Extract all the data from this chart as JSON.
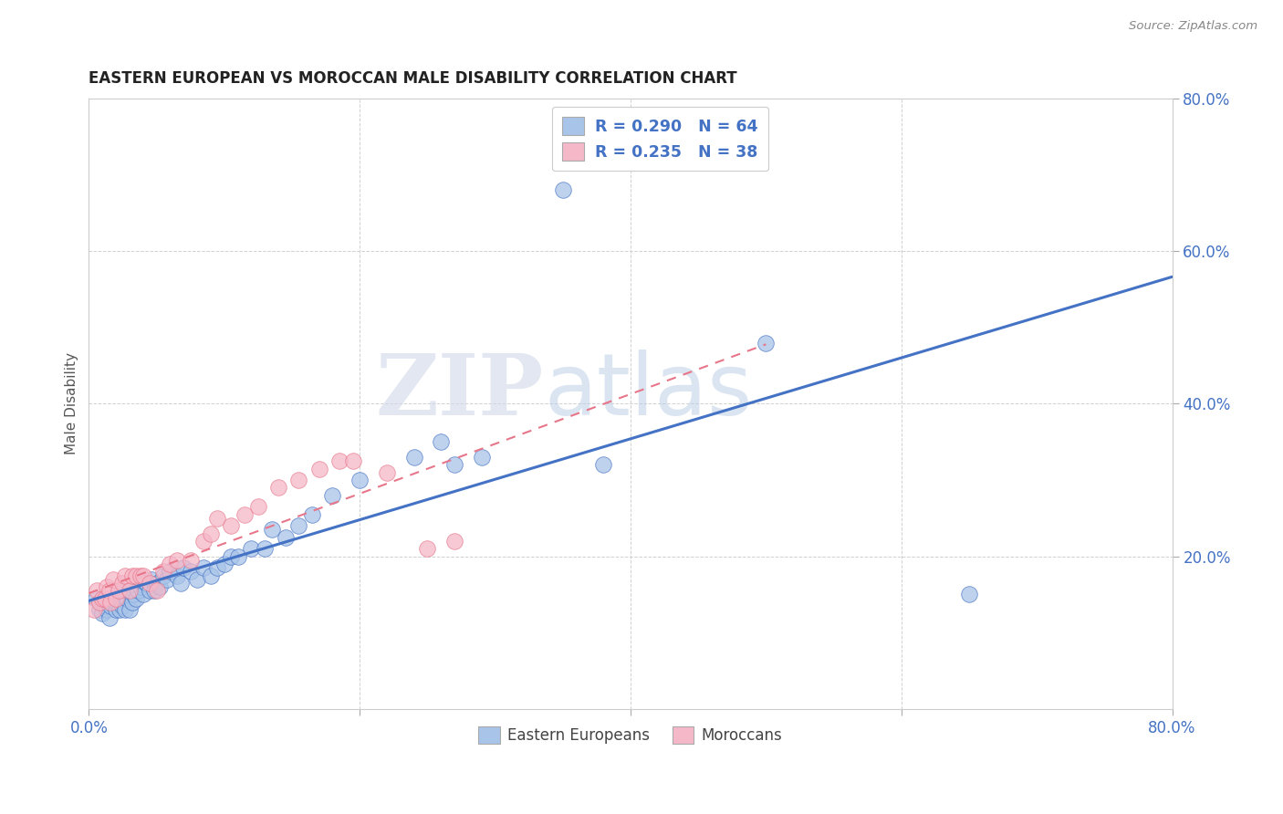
{
  "title": "EASTERN EUROPEAN VS MOROCCAN MALE DISABILITY CORRELATION CHART",
  "source_text": "Source: ZipAtlas.com",
  "ylabel": "Male Disability",
  "xlim": [
    0,
    0.8
  ],
  "ylim": [
    0,
    0.8
  ],
  "xtick_vals": [
    0.0,
    0.2,
    0.4,
    0.6,
    0.8
  ],
  "xtick_labels": [
    "0.0%",
    "",
    "",
    "",
    "80.0%"
  ],
  "ytick_vals": [
    0.2,
    0.4,
    0.6,
    0.8
  ],
  "ytick_labels": [
    "20.0%",
    "40.0%",
    "60.0%",
    "80.0%"
  ],
  "legend_label1": "R = 0.290   N = 64",
  "legend_label2": "R = 0.235   N = 38",
  "blue_color": "#a8c4e8",
  "pink_color": "#f5b8c8",
  "line_blue": "#4472c4",
  "line_pink": "#e8768a",
  "watermark_zip": "ZIP",
  "watermark_atlas": "atlas",
  "eastern_x": [
    0.005,
    0.008,
    0.01,
    0.01,
    0.012,
    0.013,
    0.014,
    0.015,
    0.016,
    0.018,
    0.02,
    0.02,
    0.022,
    0.023,
    0.024,
    0.025,
    0.025,
    0.027,
    0.028,
    0.03,
    0.03,
    0.032,
    0.033,
    0.035,
    0.036,
    0.038,
    0.04,
    0.042,
    0.043,
    0.045,
    0.046,
    0.048,
    0.05,
    0.052,
    0.055,
    0.058,
    0.06,
    0.065,
    0.068,
    0.07,
    0.075,
    0.08,
    0.085,
    0.09,
    0.095,
    0.1,
    0.105,
    0.11,
    0.12,
    0.13,
    0.135,
    0.145,
    0.155,
    0.165,
    0.18,
    0.2,
    0.24,
    0.26,
    0.27,
    0.29,
    0.35,
    0.38,
    0.5,
    0.65
  ],
  "eastern_y": [
    0.145,
    0.13,
    0.14,
    0.125,
    0.135,
    0.13,
    0.14,
    0.12,
    0.135,
    0.145,
    0.13,
    0.14,
    0.15,
    0.13,
    0.145,
    0.135,
    0.155,
    0.13,
    0.145,
    0.13,
    0.155,
    0.14,
    0.15,
    0.145,
    0.155,
    0.16,
    0.15,
    0.165,
    0.165,
    0.155,
    0.17,
    0.155,
    0.165,
    0.16,
    0.175,
    0.17,
    0.18,
    0.175,
    0.165,
    0.185,
    0.18,
    0.17,
    0.185,
    0.175,
    0.185,
    0.19,
    0.2,
    0.2,
    0.21,
    0.21,
    0.235,
    0.225,
    0.24,
    0.255,
    0.28,
    0.3,
    0.33,
    0.35,
    0.32,
    0.33,
    0.68,
    0.32,
    0.48,
    0.15
  ],
  "moroccan_x": [
    0.004,
    0.006,
    0.008,
    0.01,
    0.012,
    0.013,
    0.015,
    0.016,
    0.018,
    0.02,
    0.022,
    0.025,
    0.027,
    0.03,
    0.032,
    0.035,
    0.038,
    0.04,
    0.045,
    0.05,
    0.055,
    0.06,
    0.065,
    0.075,
    0.085,
    0.09,
    0.095,
    0.105,
    0.115,
    0.125,
    0.14,
    0.155,
    0.17,
    0.185,
    0.195,
    0.22,
    0.25,
    0.27
  ],
  "moroccan_y": [
    0.13,
    0.155,
    0.14,
    0.145,
    0.145,
    0.16,
    0.155,
    0.14,
    0.17,
    0.145,
    0.155,
    0.165,
    0.175,
    0.155,
    0.175,
    0.175,
    0.175,
    0.175,
    0.165,
    0.155,
    0.18,
    0.19,
    0.195,
    0.195,
    0.22,
    0.23,
    0.25,
    0.24,
    0.255,
    0.265,
    0.29,
    0.3,
    0.315,
    0.325,
    0.325,
    0.31,
    0.21,
    0.22
  ]
}
